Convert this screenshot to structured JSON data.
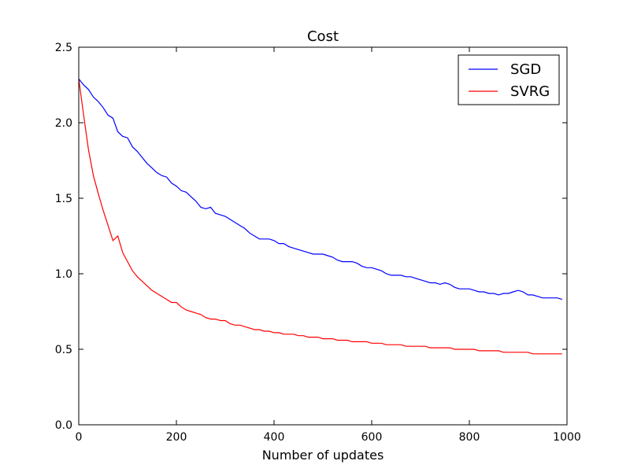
{
  "chart_data": {
    "type": "line",
    "title": "Cost",
    "xlabel": "Number of updates",
    "ylabel": "",
    "xlim": [
      0,
      1000
    ],
    "ylim": [
      0.0,
      2.5
    ],
    "xticks": [
      0,
      200,
      400,
      600,
      800,
      1000
    ],
    "xtick_labels": [
      "0",
      "200",
      "400",
      "600",
      "800",
      "1000"
    ],
    "yticks": [
      0.0,
      0.5,
      1.0,
      1.5,
      2.0,
      2.5
    ],
    "ytick_labels": [
      "0.0",
      "0.5",
      "1.0",
      "1.5",
      "2.0",
      "2.5"
    ],
    "grid": false,
    "legend_position": "top-right",
    "x": [
      0,
      10,
      20,
      30,
      40,
      50,
      60,
      70,
      80,
      90,
      100,
      110,
      120,
      130,
      140,
      150,
      160,
      170,
      180,
      190,
      200,
      210,
      220,
      230,
      240,
      250,
      260,
      270,
      280,
      290,
      300,
      310,
      320,
      330,
      340,
      350,
      360,
      370,
      380,
      390,
      400,
      410,
      420,
      430,
      440,
      450,
      460,
      470,
      480,
      490,
      500,
      510,
      520,
      530,
      540,
      550,
      560,
      570,
      580,
      590,
      600,
      610,
      620,
      630,
      640,
      650,
      660,
      670,
      680,
      690,
      700,
      710,
      720,
      730,
      740,
      750,
      760,
      770,
      780,
      790,
      800,
      810,
      820,
      830,
      840,
      850,
      860,
      870,
      880,
      890,
      900,
      910,
      920,
      930,
      940,
      950,
      960,
      970,
      980,
      990
    ],
    "series": [
      {
        "name": "SGD",
        "color": "#0000ff",
        "values": [
          2.29,
          2.25,
          2.22,
          2.17,
          2.14,
          2.1,
          2.05,
          2.03,
          1.94,
          1.91,
          1.9,
          1.84,
          1.81,
          1.77,
          1.73,
          1.7,
          1.67,
          1.65,
          1.64,
          1.6,
          1.58,
          1.55,
          1.54,
          1.51,
          1.48,
          1.44,
          1.43,
          1.44,
          1.4,
          1.39,
          1.38,
          1.36,
          1.34,
          1.32,
          1.3,
          1.27,
          1.25,
          1.23,
          1.23,
          1.23,
          1.22,
          1.2,
          1.2,
          1.18,
          1.17,
          1.16,
          1.15,
          1.14,
          1.13,
          1.13,
          1.13,
          1.12,
          1.11,
          1.09,
          1.08,
          1.08,
          1.08,
          1.07,
          1.05,
          1.04,
          1.04,
          1.03,
          1.02,
          1.0,
          0.99,
          0.99,
          0.99,
          0.98,
          0.98,
          0.97,
          0.96,
          0.95,
          0.94,
          0.94,
          0.93,
          0.94,
          0.93,
          0.91,
          0.9,
          0.9,
          0.9,
          0.89,
          0.88,
          0.88,
          0.87,
          0.87,
          0.86,
          0.87,
          0.87,
          0.88,
          0.89,
          0.88,
          0.86,
          0.86,
          0.85,
          0.84,
          0.84,
          0.84,
          0.84,
          0.83
        ]
      },
      {
        "name": "SVRG",
        "color": "#ff0000",
        "values": [
          2.29,
          2.05,
          1.82,
          1.65,
          1.53,
          1.42,
          1.32,
          1.22,
          1.25,
          1.14,
          1.08,
          1.02,
          0.98,
          0.95,
          0.92,
          0.89,
          0.87,
          0.85,
          0.83,
          0.81,
          0.81,
          0.78,
          0.76,
          0.75,
          0.74,
          0.73,
          0.71,
          0.7,
          0.7,
          0.69,
          0.69,
          0.67,
          0.66,
          0.66,
          0.65,
          0.64,
          0.63,
          0.63,
          0.62,
          0.62,
          0.61,
          0.61,
          0.6,
          0.6,
          0.6,
          0.59,
          0.59,
          0.58,
          0.58,
          0.58,
          0.57,
          0.57,
          0.57,
          0.56,
          0.56,
          0.56,
          0.55,
          0.55,
          0.55,
          0.55,
          0.54,
          0.54,
          0.54,
          0.53,
          0.53,
          0.53,
          0.53,
          0.52,
          0.52,
          0.52,
          0.52,
          0.52,
          0.51,
          0.51,
          0.51,
          0.51,
          0.51,
          0.5,
          0.5,
          0.5,
          0.5,
          0.5,
          0.49,
          0.49,
          0.49,
          0.49,
          0.49,
          0.48,
          0.48,
          0.48,
          0.48,
          0.48,
          0.48,
          0.47,
          0.47,
          0.47,
          0.47,
          0.47,
          0.47,
          0.47
        ]
      }
    ]
  }
}
